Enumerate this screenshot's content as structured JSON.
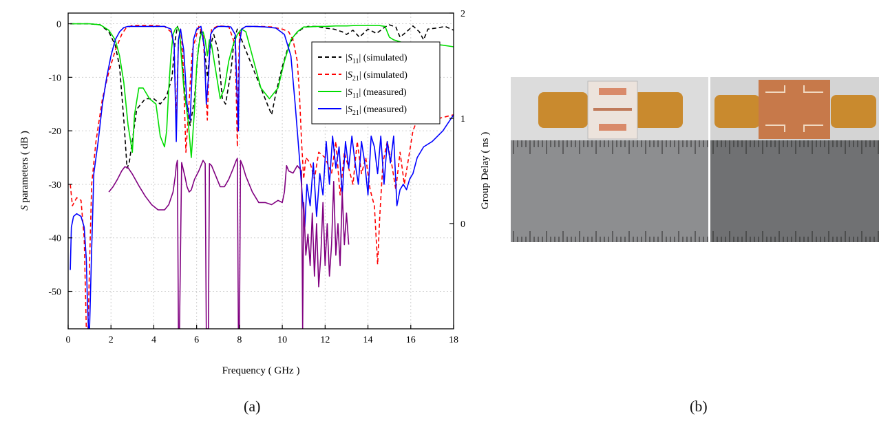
{
  "captions": {
    "a": "(a)",
    "b": "(b)"
  },
  "chart_data": {
    "type": "line",
    "xlabel": "Frequency ( GHz )",
    "ylabel_prefix": "S",
    "ylabel_rest": " parameters ( dB )",
    "y2label": "Group Delay ( ns )",
    "xlim": [
      0,
      18
    ],
    "ylim": [
      -57,
      2
    ],
    "y2lim": [
      -1,
      2
    ],
    "xticks": [
      0,
      2,
      4,
      6,
      8,
      10,
      12,
      14,
      16,
      18
    ],
    "yticks": [
      0,
      -10,
      -20,
      -30,
      -40,
      -50
    ],
    "y2ticks": [
      0,
      1,
      2
    ],
    "grid": true,
    "legend_position": "top-right",
    "legend": [
      {
        "pre": "|",
        "sym": "S",
        "sub": "11",
        "post": "| (simulated)",
        "color": "#000000",
        "dash": true
      },
      {
        "pre": "|",
        "sym": "S",
        "sub": "21",
        "post": "| (simulated)",
        "color": "#ff0000",
        "dash": true
      },
      {
        "pre": "|",
        "sym": "S",
        "sub": "11",
        "post": "| (measured)",
        "color": "#00dd00",
        "dash": false
      },
      {
        "pre": "|",
        "sym": "S",
        "sub": "21",
        "post": "| (measured)",
        "color": "#0000ff",
        "dash": false
      }
    ],
    "series": [
      {
        "color": "#000000",
        "dash": true,
        "axis": "y",
        "x": [
          0.1,
          1,
          1.5,
          1.9,
          2.2,
          2.4,
          2.6,
          2.75,
          2.85,
          3.2,
          3.6,
          4,
          4.3,
          4.6,
          4.85,
          5.0,
          5.1,
          5.2,
          5.3,
          5.5,
          5.7,
          5.9,
          6.05,
          6.2,
          6.35,
          6.5,
          6.65,
          6.8,
          7.0,
          7.2,
          7.35,
          7.6,
          7.75,
          7.9,
          8.0,
          8.2,
          8.6,
          9.0,
          9.3,
          9.5,
          9.7,
          10.0,
          10.3,
          10.6,
          10.9,
          11.2,
          11.6,
          12,
          12.4,
          12.8,
          13.0,
          13.3,
          13.6,
          14.0,
          14.4,
          14.8,
          15.0,
          15.3,
          15.5,
          15.8,
          16.1,
          16.4,
          16.6,
          16.8,
          17.2,
          17.6,
          18
        ],
        "y": [
          0,
          0,
          -0.2,
          -1.5,
          -4,
          -8,
          -18,
          -27,
          -26,
          -16,
          -14,
          -14,
          -15,
          -13.5,
          -10,
          -3,
          -0.5,
          -1.5,
          -6,
          -15,
          -19,
          -14,
          -6,
          -1,
          -4,
          -10,
          -4,
          -2,
          -5,
          -14,
          -15,
          -9,
          -3,
          -1,
          -2,
          -4,
          -8,
          -12,
          -15,
          -17,
          -13,
          -8,
          -4,
          -2,
          -1,
          -0.5,
          -0.5,
          -0.8,
          -1,
          -1.5,
          -2,
          -1.2,
          -2.5,
          -1,
          -1.8,
          -0.6,
          -0.2,
          -0.6,
          -2.5,
          -1.5,
          -0.4,
          -1.5,
          -3,
          -1,
          -0.8,
          -0.5,
          -1.2
        ]
      },
      {
        "color": "#ff0000",
        "dash": true,
        "axis": "y",
        "x": [
          0.1,
          0.2,
          0.4,
          0.6,
          0.75,
          0.85,
          0.93,
          1.0,
          1.1,
          1.3,
          1.6,
          1.9,
          2.2,
          2.5,
          2.7,
          3,
          3.5,
          4,
          4.5,
          4.8,
          4.95,
          5.05,
          5.15,
          5.25,
          5.35,
          5.5,
          5.8,
          6.1,
          6.3,
          6.4,
          6.5,
          6.6,
          6.7,
          7,
          7.5,
          7.8,
          7.9,
          7.95,
          8.0,
          8.1,
          8.3,
          9,
          9.5,
          10,
          10.3,
          10.5,
          10.7,
          10.8,
          10.9,
          11.0,
          11.1,
          11.3,
          11.5,
          11.7,
          12,
          12.3,
          12.5,
          12.7,
          12.9,
          13.1,
          13.3,
          13.5,
          13.7,
          13.9,
          14.1,
          14.3,
          14.45,
          14.55,
          14.7,
          14.9,
          15.1,
          15.3,
          15.5,
          15.7,
          15.9,
          16.1,
          16.3,
          16.6,
          17,
          17.5,
          18
        ],
        "y": [
          -30,
          -34,
          -32.5,
          -33,
          -40,
          -57,
          -57,
          -45,
          -30,
          -22,
          -14,
          -9,
          -5,
          -2,
          -0.8,
          -0.3,
          -0.3,
          -0.3,
          -0.5,
          -1.5,
          -4,
          -19,
          -3,
          -1,
          -5,
          -24,
          -5,
          -0.5,
          -2,
          -9,
          -18,
          -5,
          -1,
          -0.4,
          -0.5,
          -4,
          -23,
          -10,
          -2,
          -1,
          -0.5,
          -0.5,
          -0.6,
          -1,
          -1.5,
          -3,
          -7,
          -13,
          -22,
          -29,
          -25,
          -26,
          -29,
          -24,
          -25,
          -28,
          -22,
          -32,
          -24,
          -27,
          -30,
          -22,
          -28,
          -25,
          -31,
          -34,
          -45,
          -36,
          -26,
          -22,
          -26,
          -31,
          -24,
          -30,
          -25,
          -20,
          -18,
          -17,
          -18,
          -17.5,
          -17
        ]
      },
      {
        "color": "#00dd00",
        "dash": false,
        "axis": "y",
        "x": [
          0.1,
          1,
          1.5,
          1.9,
          2.2,
          2.4,
          2.6,
          2.8,
          3.0,
          3.1,
          3.3,
          3.5,
          3.8,
          4.1,
          4.3,
          4.5,
          4.6,
          4.7,
          4.8,
          4.9,
          5.0,
          5.1,
          5.2,
          5.3,
          5.4,
          5.6,
          5.75,
          5.9,
          6.0,
          6.1,
          6.2,
          6.3,
          6.4,
          6.5,
          6.6,
          6.7,
          6.9,
          7.1,
          7.3,
          7.5,
          7.7,
          7.9,
          8.1,
          8.3,
          8.6,
          9.0,
          9.4,
          9.8,
          10.1,
          10.4,
          10.7,
          11.0,
          11.2,
          11.6,
          12,
          12.5,
          13,
          13.5,
          14,
          14.5,
          14.8,
          15.0,
          15.2,
          15.6,
          16,
          16.5,
          17,
          17.5,
          18
        ],
        "y": [
          0,
          0,
          -0.2,
          -1.2,
          -3,
          -6,
          -11,
          -19,
          -24,
          -17,
          -12,
          -12,
          -14,
          -15,
          -21,
          -23,
          -20,
          -12,
          -6,
          -2,
          -1,
          -0.6,
          -1.5,
          -7,
          -12,
          -18,
          -25,
          -16,
          -8,
          -4,
          -2,
          -1.5,
          -3,
          -6,
          -3,
          -4,
          -9,
          -14,
          -12,
          -7,
          -4,
          -2,
          -1,
          -1.5,
          -6,
          -12,
          -14,
          -12,
          -7,
          -3,
          -1.5,
          -0.6,
          -0.6,
          -0.5,
          -0.5,
          -0.4,
          -0.4,
          -0.3,
          -0.3,
          -0.3,
          -0.5,
          -2.5,
          -3,
          -3.5,
          -3.5,
          -3.5,
          -3.8,
          -4,
          -4.3
        ]
      },
      {
        "color": "#0000ff",
        "dash": false,
        "axis": "y",
        "x": [
          0.1,
          0.15,
          0.25,
          0.4,
          0.6,
          0.75,
          0.85,
          0.9,
          0.95,
          1.0,
          1.1,
          1.2,
          1.4,
          1.6,
          1.8,
          2.0,
          2.2,
          2.4,
          2.6,
          2.8,
          3.0,
          3.5,
          4.0,
          4.5,
          4.8,
          4.95,
          5.05,
          5.15,
          5.25,
          5.4,
          5.55,
          5.7,
          5.85,
          6.0,
          6.2,
          6.35,
          6.45,
          6.55,
          6.65,
          6.8,
          7.0,
          7.3,
          7.6,
          7.8,
          7.9,
          7.95,
          8.0,
          8.1,
          8.3,
          8.7,
          9.2,
          9.7,
          10.1,
          10.4,
          10.6,
          10.8,
          10.95,
          11.05,
          11.15,
          11.3,
          11.45,
          11.6,
          11.75,
          11.9,
          12.05,
          12.2,
          12.35,
          12.5,
          12.65,
          12.8,
          12.95,
          13.1,
          13.25,
          13.4,
          13.55,
          13.7,
          13.85,
          14.0,
          14.15,
          14.3,
          14.45,
          14.6,
          14.75,
          14.9,
          15.05,
          15.2,
          15.35,
          15.5,
          15.65,
          15.8,
          15.95,
          16.1,
          16.3,
          16.6,
          17,
          17.5,
          18
        ],
        "y": [
          -46,
          -38,
          -36,
          -35.5,
          -36,
          -38,
          -44,
          -52,
          -57,
          -57,
          -42,
          -28,
          -22,
          -15,
          -10,
          -6,
          -3,
          -1.5,
          -0.7,
          -0.5,
          -0.5,
          -0.5,
          -0.5,
          -0.5,
          -1,
          -4,
          -22,
          -3,
          -1,
          -5,
          -15,
          -18,
          -3,
          -1,
          -0.5,
          -4,
          -15,
          -10,
          -2,
          -1,
          -0.5,
          -0.5,
          -0.6,
          -2,
          -15,
          -20,
          -4,
          -1,
          -0.5,
          -0.5,
          -0.6,
          -0.8,
          -2,
          -6,
          -15,
          -25,
          -33,
          -38,
          -30,
          -34,
          -26,
          -36,
          -28,
          -32,
          -22,
          -30,
          -21,
          -27,
          -23,
          -32,
          -22,
          -27,
          -21,
          -26,
          -30,
          -22,
          -26,
          -32,
          -21,
          -23,
          -28,
          -21,
          -30,
          -22,
          -26,
          -21,
          -34,
          -31,
          -30,
          -31,
          -29,
          -28,
          -25,
          -23,
          -22,
          -20,
          -17
        ]
      },
      {
        "color": "#800080",
        "dash": false,
        "axis": "y2",
        "x": [
          1.9,
          2.1,
          2.3,
          2.5,
          2.65,
          2.8,
          3.0,
          3.3,
          3.6,
          3.9,
          4.2,
          4.5,
          4.7,
          4.9,
          5.0,
          5.05,
          5.1,
          5.15,
          5.2,
          5.3,
          5.45,
          5.55,
          5.65,
          5.75,
          5.9,
          6.1,
          6.3,
          6.4,
          6.45,
          6.5,
          6.55,
          6.6,
          6.7,
          6.9,
          7.1,
          7.3,
          7.5,
          7.7,
          7.85,
          7.9,
          7.95,
          8.0,
          8.05,
          8.15,
          8.3,
          8.6,
          8.9,
          9.2,
          9.5,
          9.8,
          10.0,
          10.1,
          10.2,
          10.3,
          10.5,
          10.7,
          10.9,
          10.95,
          11.0,
          11.1,
          11.2,
          11.3,
          11.4,
          11.5,
          11.6,
          11.7,
          11.8,
          11.9,
          12.0,
          12.1,
          12.2,
          12.3,
          12.4,
          12.5,
          12.6,
          12.7,
          12.8,
          12.9,
          13.0,
          13.1
        ],
        "y": [
          0.3,
          0.35,
          0.42,
          0.5,
          0.54,
          0.53,
          0.47,
          0.36,
          0.26,
          0.18,
          0.13,
          0.13,
          0.18,
          0.3,
          0.45,
          0.55,
          0.6,
          -1,
          -1,
          0.58,
          0.45,
          0.35,
          0.3,
          0.32,
          0.42,
          0.5,
          0.6,
          0.57,
          -1,
          -1,
          -1,
          0.57,
          0.55,
          0.45,
          0.35,
          0.35,
          0.42,
          0.52,
          0.6,
          0.62,
          -1,
          -1,
          0.6,
          0.55,
          0.45,
          0.3,
          0.2,
          0.2,
          0.18,
          0.22,
          0.2,
          0.3,
          0.55,
          0.5,
          0.48,
          0.55,
          0.5,
          -1,
          0.2,
          -0.3,
          -0.1,
          -0.4,
          0.1,
          -0.5,
          0.0,
          -0.6,
          -0.3,
          0.2,
          -0.4,
          0.0,
          -0.5,
          -0.2,
          0.4,
          -0.3,
          0.0,
          -0.4,
          0.3,
          -0.2,
          0.1,
          -0.2
        ]
      }
    ]
  }
}
